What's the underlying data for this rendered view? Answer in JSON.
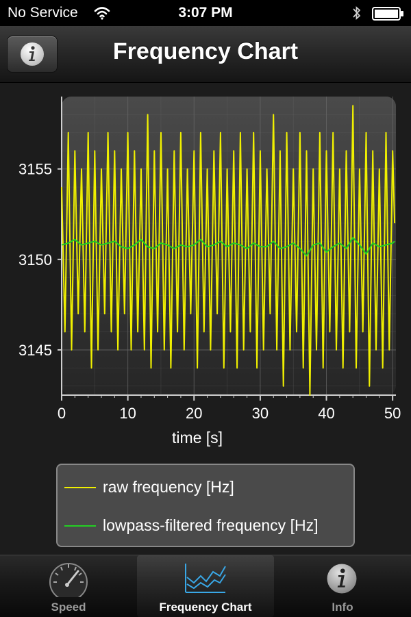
{
  "status_bar": {
    "carrier": "No Service",
    "time": "3:07 PM",
    "icons": [
      "wifi-icon",
      "bluetooth-icon",
      "battery-icon"
    ]
  },
  "nav_bar": {
    "title": "Frequency Chart",
    "info_button_icon": "info-icon"
  },
  "chart_data": {
    "type": "line",
    "xlabel": "time [s]",
    "ylabel": "",
    "xlim": [
      0,
      50.5
    ],
    "ylim": [
      3142.5,
      3159
    ],
    "x_ticks": [
      0,
      10,
      20,
      30,
      40,
      50
    ],
    "y_ticks": [
      3145,
      3150,
      3155
    ],
    "grid": true,
    "legend_placement": "bottom",
    "series": [
      {
        "name": "raw frequency [Hz]",
        "color": "#f0f000",
        "x": [
          0,
          0.5,
          1,
          1.5,
          2,
          2.5,
          3,
          3.5,
          4,
          4.5,
          5,
          5.5,
          6,
          6.5,
          7,
          7.5,
          8,
          8.5,
          9,
          9.5,
          10,
          10.5,
          11,
          11.5,
          12,
          12.5,
          13,
          13.5,
          14,
          14.5,
          15,
          15.5,
          16,
          16.5,
          17,
          17.5,
          18,
          18.5,
          19,
          19.5,
          20,
          20.5,
          21,
          21.5,
          22,
          22.5,
          23,
          23.5,
          24,
          24.5,
          25,
          25.5,
          26,
          26.5,
          27,
          27.5,
          28,
          28.5,
          29,
          29.5,
          30,
          30.5,
          31,
          31.5,
          32,
          32.5,
          33,
          33.5,
          34,
          34.5,
          35,
          35.5,
          36,
          36.5,
          37,
          37.5,
          38,
          38.5,
          39,
          39.5,
          40,
          40.5,
          41,
          41.5,
          42,
          42.5,
          43,
          43.5,
          44,
          44.5,
          45,
          45.5,
          46,
          46.5,
          47,
          47.5,
          48,
          48.5,
          49,
          49.5,
          50,
          50.3
        ],
        "values": [
          3154,
          3146,
          3157,
          3145,
          3156,
          3147,
          3155,
          3146,
          3157,
          3144,
          3156,
          3145,
          3155,
          3147,
          3157,
          3146,
          3156,
          3145,
          3155,
          3147,
          3157,
          3145,
          3156,
          3146,
          3155,
          3145,
          3158,
          3144,
          3156,
          3146,
          3157,
          3145,
          3155,
          3144,
          3156,
          3146,
          3157,
          3145,
          3155,
          3147,
          3156,
          3144,
          3157,
          3146,
          3155,
          3145,
          3156,
          3147,
          3157,
          3144,
          3155,
          3146,
          3156,
          3144,
          3157,
          3145,
          3155,
          3146,
          3157,
          3144,
          3156,
          3145,
          3155,
          3147,
          3158,
          3145,
          3156,
          3143,
          3157,
          3145,
          3155,
          3146,
          3157,
          3144,
          3156,
          3142.5,
          3155,
          3145,
          3157,
          3144,
          3156,
          3146,
          3157,
          3145,
          3155,
          3144,
          3156,
          3146,
          3158.5,
          3144,
          3155,
          3146,
          3157,
          3143,
          3156,
          3145,
          3155,
          3144,
          3157,
          3145,
          3156,
          3152
        ]
      },
      {
        "name": "lowpass-filtered frequency [Hz]",
        "color": "#22d022",
        "x": [
          0,
          1,
          2,
          3,
          4,
          5,
          6,
          7,
          8,
          9,
          10,
          11,
          12,
          13,
          14,
          15,
          16,
          17,
          18,
          19,
          20,
          21,
          22,
          23,
          24,
          25,
          26,
          27,
          28,
          29,
          30,
          31,
          32,
          33,
          34,
          35,
          36,
          37,
          38,
          39,
          40,
          41,
          42,
          43,
          44,
          45,
          46,
          47,
          48,
          49,
          50,
          50.3
        ],
        "values": [
          3150.8,
          3150.9,
          3151.1,
          3150.8,
          3150.9,
          3151.0,
          3150.8,
          3150.9,
          3151.0,
          3150.7,
          3150.6,
          3150.8,
          3151.1,
          3150.7,
          3150.6,
          3150.9,
          3150.8,
          3150.6,
          3150.8,
          3150.7,
          3150.8,
          3151.1,
          3150.7,
          3150.8,
          3151.0,
          3150.7,
          3150.9,
          3150.8,
          3150.6,
          3150.9,
          3150.7,
          3150.7,
          3151.0,
          3150.6,
          3150.7,
          3150.9,
          3150.6,
          3150.2,
          3150.8,
          3150.9,
          3150.4,
          3150.7,
          3150.9,
          3150.6,
          3151.2,
          3150.8,
          3150.3,
          3150.9,
          3150.7,
          3150.8,
          3150.9,
          3151.0
        ]
      }
    ]
  },
  "tab_bar": {
    "tabs": [
      {
        "label": "Speed",
        "icon": "speedometer-icon",
        "active": false
      },
      {
        "label": "Frequency Chart",
        "icon": "chart-icon",
        "active": true
      },
      {
        "label": "Info",
        "icon": "info-icon",
        "active": false
      }
    ]
  }
}
